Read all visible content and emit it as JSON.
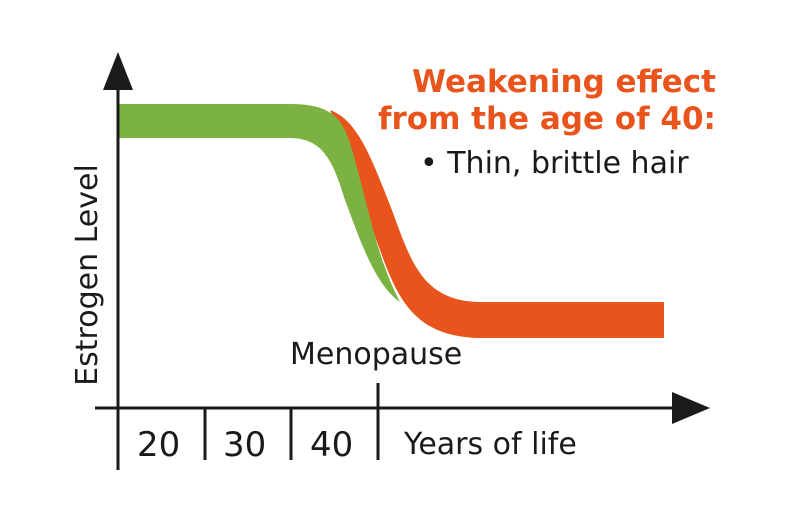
{
  "chart_data": {
    "type": "area",
    "title_lines": [
      "Weakening effect",
      "from the age of 40:"
    ],
    "annotation": "• Thin, brittle hair",
    "ylabel": "Estrogen Level",
    "xlabel": "Years of life",
    "categories": [
      "20",
      "30",
      "40"
    ],
    "marker": {
      "label": "Menopause"
    },
    "series": [
      {
        "color": "#7cb242"
      },
      {
        "color": "#e8541b"
      }
    ],
    "grid": false,
    "axis_color": "#1a1a1a"
  }
}
